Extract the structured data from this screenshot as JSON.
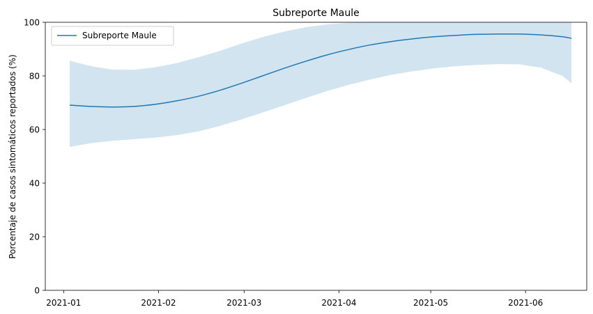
{
  "chart_data": {
    "type": "line",
    "title": "Subreporte Maule",
    "xlabel": "",
    "ylabel": "Porcentaje de casos sintomáticos reportados (%)",
    "ylim": [
      0,
      100
    ],
    "xlim": [
      "2020-12-26",
      "2021-06-21"
    ],
    "x_ticks": [
      "2021-01",
      "2021-02",
      "2021-03",
      "2021-04",
      "2021-05",
      "2021-06"
    ],
    "y_ticks": [
      0,
      20,
      40,
      60,
      80,
      100
    ],
    "grid": false,
    "legend": {
      "placement": "top-left",
      "entries": [
        "Subreporte Maule"
      ]
    },
    "colors": {
      "line": "#1f77b4",
      "band": "#1f77b4"
    },
    "series": [
      {
        "name": "Subreporte Maule",
        "x": [
          "2021-01-03",
          "2021-01-10",
          "2021-01-17",
          "2021-01-24",
          "2021-01-31",
          "2021-02-07",
          "2021-02-14",
          "2021-02-21",
          "2021-02-28",
          "2021-03-07",
          "2021-03-14",
          "2021-03-21",
          "2021-03-28",
          "2021-04-04",
          "2021-04-11",
          "2021-04-18",
          "2021-04-25",
          "2021-05-02",
          "2021-05-09",
          "2021-05-16",
          "2021-05-23",
          "2021-05-30",
          "2021-06-06",
          "2021-06-13",
          "2021-06-16"
        ],
        "y": [
          69.1,
          68.6,
          68.4,
          68.6,
          69.4,
          70.7,
          72.4,
          74.6,
          77.2,
          80.0,
          82.8,
          85.4,
          87.8,
          89.8,
          91.5,
          92.8,
          93.8,
          94.6,
          95.1,
          95.5,
          95.6,
          95.6,
          95.3,
          94.6,
          94.0
        ],
        "lower": [
          53.5,
          54.9,
          55.8,
          56.4,
          57.0,
          57.9,
          59.3,
          61.3,
          63.7,
          66.3,
          69.0,
          71.7,
          74.3,
          76.6,
          78.6,
          80.4,
          81.7,
          82.8,
          83.6,
          84.1,
          84.4,
          84.3,
          83.1,
          80.0,
          77.3
        ],
        "upper": [
          85.6,
          83.6,
          82.3,
          82.3,
          83.2,
          84.8,
          86.9,
          89.3,
          92.0,
          94.5,
          96.5,
          98.1,
          99.2,
          99.8,
          100.0,
          100.0,
          100.0,
          100.0,
          100.0,
          100.0,
          100.0,
          100.0,
          100.0,
          100.0,
          100.0
        ]
      }
    ]
  }
}
